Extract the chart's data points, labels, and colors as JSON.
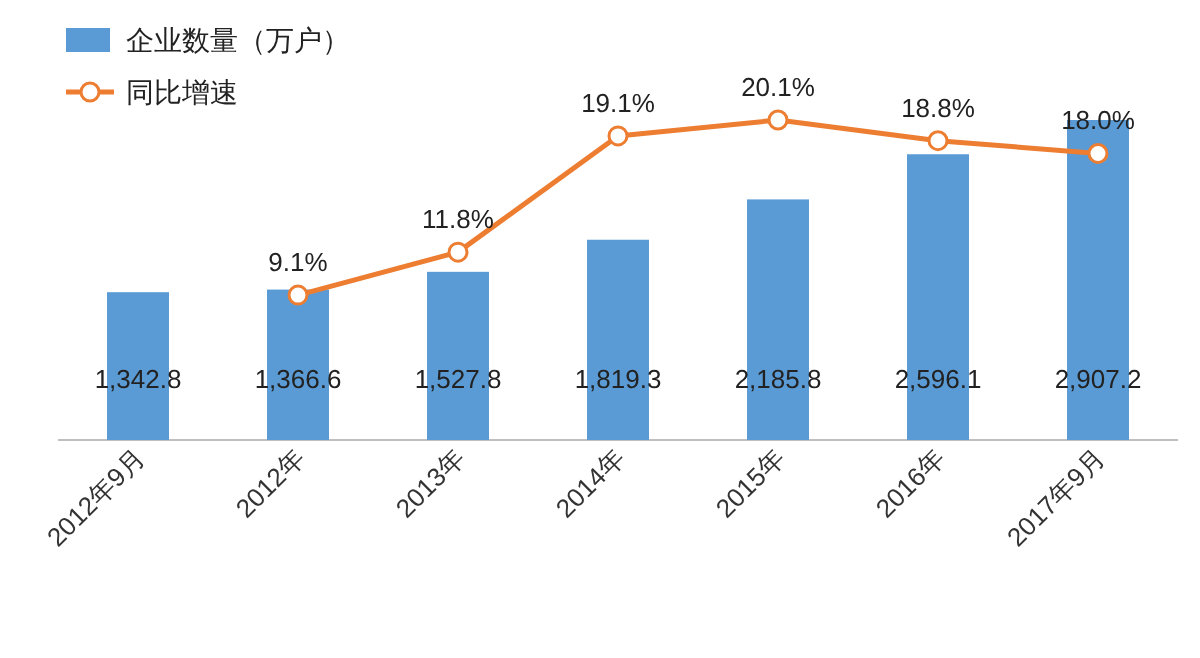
{
  "chart_data": {
    "type": "bar",
    "categories": [
      "2012年9月",
      "2012年",
      "2013年",
      "2014年",
      "2015年",
      "2016年",
      "2017年9月"
    ],
    "legend": "top left",
    "series": [
      {
        "name": "企业数量（万户）",
        "color": "#5b9bd5",
        "values": [
          1342.8,
          1366.6,
          1527.8,
          1819.3,
          2185.8,
          2596.1,
          2907.2
        ],
        "value_labels": [
          "1,342.8",
          "1,366.6",
          "1,527.8",
          "1,819.3",
          "2,185.8",
          "2,596.1",
          "2,907.2"
        ]
      },
      {
        "name": "同比增速",
        "type": "line",
        "axis": "y2",
        "marker": "circle",
        "color": "#ed7d31",
        "values": [
          null,
          9.1,
          11.8,
          19.1,
          20.1,
          18.8,
          18.0
        ],
        "value_labels": [
          null,
          "9.1%",
          "11.8%",
          "19.1%",
          "20.1%",
          "18.8%",
          "18.0%"
        ]
      }
    ]
  }
}
